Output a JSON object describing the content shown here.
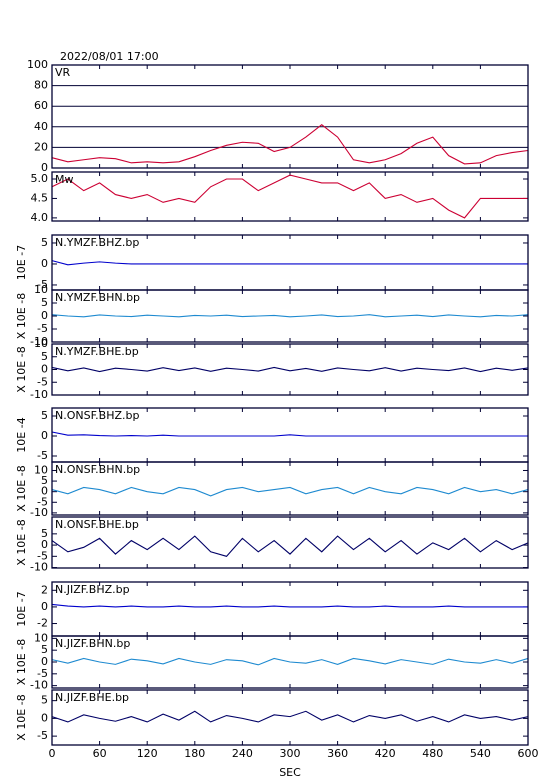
{
  "chart_data": [
    {
      "type": "line",
      "title": "2022/08/01 17:00",
      "grid": true,
      "x": [
        0,
        20,
        40,
        60,
        80,
        100,
        120,
        140,
        160,
        180,
        200,
        220,
        240,
        260,
        280,
        300,
        320,
        340,
        360,
        380,
        400,
        420,
        440,
        460,
        480,
        500,
        520,
        540,
        560,
        580,
        600
      ],
      "xlim": [
        0,
        600
      ],
      "ylim": [
        0,
        100
      ],
      "yticks": [
        0,
        20,
        40,
        60,
        80,
        100
      ],
      "series": [
        {
          "name": "VR",
          "color": "#cc0033",
          "values": [
            10,
            6,
            8,
            10,
            9,
            5,
            6,
            5,
            6,
            11,
            17,
            22,
            25,
            24,
            16,
            20,
            30,
            42,
            30,
            8,
            5,
            8,
            14,
            24,
            30,
            12,
            4,
            5,
            12,
            15,
            17
          ]
        }
      ]
    },
    {
      "type": "line",
      "x": [
        0,
        20,
        40,
        60,
        80,
        100,
        120,
        140,
        160,
        180,
        200,
        220,
        240,
        260,
        280,
        300,
        320,
        340,
        360,
        380,
        400,
        420,
        440,
        460,
        480,
        500,
        520,
        540,
        560,
        580,
        600
      ],
      "xlim": [
        0,
        600
      ],
      "ylim": [
        3.92,
        5.18
      ],
      "yticks": [
        {
          "value": 4,
          "label": "4.0"
        },
        {
          "value": 4.5,
          "label": "4.5"
        },
        {
          "value": 5,
          "label": "5.0"
        }
      ],
      "series": [
        {
          "name": "Mw",
          "color": "#cc0033",
          "values": [
            4.8,
            5.0,
            4.7,
            4.9,
            4.6,
            4.5,
            4.6,
            4.4,
            4.5,
            4.4,
            4.8,
            5.0,
            5.0,
            4.7,
            4.9,
            5.1,
            5.0,
            4.9,
            4.9,
            4.7,
            4.9,
            4.5,
            4.6,
            4.4,
            4.5,
            4.2,
            4.0,
            4.5,
            4.5,
            4.5,
            4.5
          ]
        }
      ]
    },
    {
      "type": "line",
      "ylabel": "10E -7",
      "x": [
        0,
        20,
        40,
        60,
        80,
        100,
        120,
        140,
        160,
        180,
        200,
        220,
        240,
        260,
        280,
        300,
        320,
        340,
        360,
        380,
        400,
        420,
        440,
        460,
        480,
        500,
        520,
        540,
        560,
        580,
        600
      ],
      "xlim": [
        0,
        600
      ],
      "ylim": [
        -6.2,
        6.9
      ],
      "yticks": [
        -5,
        0,
        5
      ],
      "series": [
        {
          "name": "N.YMZF.BHZ.bp",
          "color": "#0000cc",
          "values": [
            0.8,
            -0.2,
            0.2,
            0.5,
            0.2,
            0,
            0,
            0,
            0,
            0,
            0,
            0,
            0,
            0,
            0,
            0,
            0,
            0,
            0,
            0,
            0,
            0,
            0,
            0,
            0,
            0,
            0,
            0,
            0,
            0,
            0
          ]
        }
      ]
    },
    {
      "type": "line",
      "ylabel": "X 10E -8",
      "x": [
        0,
        20,
        40,
        60,
        80,
        100,
        120,
        140,
        160,
        180,
        200,
        220,
        240,
        260,
        280,
        300,
        320,
        340,
        360,
        380,
        400,
        420,
        440,
        460,
        480,
        500,
        520,
        540,
        560,
        580,
        600
      ],
      "xlim": [
        0,
        600
      ],
      "ylim": [
        -10,
        10
      ],
      "yticks": [
        -10,
        -5,
        0,
        5,
        10
      ],
      "series": [
        {
          "name": "N.YMZF.BHN.bp",
          "color": "#1e8ad0",
          "values": [
            0.5,
            0,
            -0.3,
            0.4,
            0,
            -0.2,
            0.3,
            0,
            -0.3,
            0.2,
            0,
            0.3,
            -0.2,
            0,
            0.2,
            -0.3,
            0,
            0.4,
            -0.2,
            0,
            0.5,
            -0.3,
            0,
            0.3,
            -0.2,
            0.4,
            0,
            -0.3,
            0.2,
            0,
            0.5
          ]
        }
      ]
    },
    {
      "type": "line",
      "ylabel": "X 10E -8",
      "x": [
        0,
        20,
        40,
        60,
        80,
        100,
        120,
        140,
        160,
        180,
        200,
        220,
        240,
        260,
        280,
        300,
        320,
        340,
        360,
        380,
        400,
        420,
        440,
        460,
        480,
        500,
        520,
        540,
        560,
        580,
        600
      ],
      "xlim": [
        0,
        600
      ],
      "ylim": [
        -10,
        10
      ],
      "yticks": [
        -10,
        -5,
        0,
        5,
        10
      ],
      "series": [
        {
          "name": "N.YMZF.BHE.bp",
          "color": "#000066",
          "values": [
            0.8,
            -0.5,
            0.6,
            -0.8,
            0.5,
            0,
            -0.6,
            0.7,
            -0.4,
            0.6,
            -0.7,
            0.5,
            0,
            -0.6,
            0.8,
            -0.5,
            0.4,
            -0.7,
            0.6,
            0,
            -0.5,
            0.7,
            -0.6,
            0.5,
            0,
            -0.4,
            0.6,
            -0.8,
            0.5,
            -0.3,
            0.6
          ]
        }
      ]
    },
    {
      "type": "line",
      "ylabel": "10E -4",
      "x": [
        0,
        20,
        40,
        60,
        80,
        100,
        120,
        140,
        160,
        180,
        200,
        220,
        240,
        260,
        280,
        300,
        320,
        340,
        360,
        380,
        400,
        420,
        440,
        460,
        480,
        500,
        520,
        540,
        560,
        580,
        600
      ],
      "xlim": [
        0,
        600
      ],
      "ylim": [
        -6.5,
        7
      ],
      "yticks": [
        -5,
        0,
        5
      ],
      "series": [
        {
          "name": "N.ONSF.BHZ.bp",
          "color": "#0000cc",
          "values": [
            1,
            0.2,
            0.3,
            0.1,
            0,
            0.1,
            0,
            0.2,
            0,
            0,
            0,
            0,
            0,
            0,
            0,
            0.3,
            0,
            0,
            0,
            0,
            0,
            0,
            0,
            0,
            0,
            0,
            0,
            0,
            0,
            0,
            0
          ]
        }
      ]
    },
    {
      "type": "line",
      "ylabel": "X 10E -8",
      "x": [
        0,
        20,
        40,
        60,
        80,
        100,
        120,
        140,
        160,
        180,
        200,
        220,
        240,
        260,
        280,
        300,
        320,
        340,
        360,
        380,
        400,
        420,
        440,
        460,
        480,
        500,
        520,
        540,
        560,
        580,
        600
      ],
      "xlim": [
        0,
        600
      ],
      "ylim": [
        -11,
        14
      ],
      "yticks": [
        -10,
        -5,
        0,
        5,
        10
      ],
      "series": [
        {
          "name": "N.ONSF.BHN.bp",
          "color": "#1e8ad0",
          "values": [
            1,
            -1,
            2,
            1,
            -1,
            2,
            0,
            -1,
            2,
            1,
            -2,
            1,
            2,
            0,
            1,
            2,
            -1,
            1,
            2,
            -1,
            2,
            0,
            -1,
            2,
            1,
            -1,
            2,
            0,
            1,
            -1,
            1
          ]
        }
      ]
    },
    {
      "type": "line",
      "ylabel": "X 10E -8",
      "x": [
        0,
        20,
        40,
        60,
        80,
        100,
        120,
        140,
        160,
        180,
        200,
        220,
        240,
        260,
        280,
        300,
        320,
        340,
        360,
        380,
        400,
        420,
        440,
        460,
        480,
        500,
        520,
        540,
        560,
        580,
        600
      ],
      "xlim": [
        0,
        600
      ],
      "ylim": [
        -10.2,
        12.5
      ],
      "yticks": [
        -10,
        -5,
        0,
        5
      ],
      "series": [
        {
          "name": "N.ONSF.BHE.bp",
          "color": "#000066",
          "values": [
            2,
            -3,
            -1,
            3,
            -4,
            2,
            -2,
            3,
            -2,
            4,
            -3,
            -5,
            3,
            -3,
            2,
            -4,
            3,
            -3,
            4,
            -2,
            3,
            -3,
            2,
            -4,
            1,
            -2,
            3,
            -3,
            2,
            -2,
            1
          ]
        }
      ]
    },
    {
      "type": "line",
      "ylabel": "10E -7",
      "x": [
        0,
        20,
        40,
        60,
        80,
        100,
        120,
        140,
        160,
        180,
        200,
        220,
        240,
        260,
        280,
        300,
        320,
        340,
        360,
        380,
        400,
        420,
        440,
        460,
        480,
        500,
        520,
        540,
        560,
        580,
        600
      ],
      "xlim": [
        0,
        600
      ],
      "ylim": [
        -3.5,
        3
      ],
      "yticks": [
        -2,
        0,
        2
      ],
      "series": [
        {
          "name": "N.JIZF.BHZ.bp",
          "color": "#0000cc",
          "values": [
            0.3,
            0.1,
            0,
            0.1,
            0,
            0.1,
            0,
            0,
            0.1,
            0,
            0,
            0.1,
            0,
            0,
            0.1,
            0,
            0,
            0,
            0.1,
            0,
            0,
            0.1,
            0,
            0,
            0,
            0.1,
            0,
            0,
            0,
            0,
            0
          ]
        }
      ]
    },
    {
      "type": "line",
      "ylabel": "X 10E -8",
      "x": [
        0,
        20,
        40,
        60,
        80,
        100,
        120,
        140,
        160,
        180,
        200,
        220,
        240,
        260,
        280,
        300,
        320,
        340,
        360,
        380,
        400,
        420,
        440,
        460,
        480,
        500,
        520,
        540,
        560,
        580,
        600
      ],
      "xlim": [
        0,
        600
      ],
      "ylim": [
        -11,
        11
      ],
      "yticks": [
        -10,
        -5,
        0,
        5,
        10
      ],
      "series": [
        {
          "name": "N.JIZF.BHN.bp",
          "color": "#1e8ad0",
          "values": [
            1,
            -0.5,
            1.5,
            0,
            -1,
            1.2,
            0.5,
            -0.8,
            1.5,
            0,
            -1,
            1,
            0.5,
            -1.2,
            1.5,
            0,
            -0.5,
            1,
            -1,
            1.5,
            0.5,
            -0.8,
            1,
            0,
            -1,
            1.2,
            0,
            -0.5,
            1,
            -0.5,
            1.5
          ]
        }
      ]
    },
    {
      "type": "line",
      "ylabel": "X 10E -8",
      "xlabel": "SEC",
      "x": [
        0,
        20,
        40,
        60,
        80,
        100,
        120,
        140,
        160,
        180,
        200,
        220,
        240,
        260,
        280,
        300,
        320,
        340,
        360,
        380,
        400,
        420,
        440,
        460,
        480,
        500,
        520,
        540,
        560,
        580,
        600
      ],
      "xlim": [
        0,
        600
      ],
      "xticks": [
        0,
        60,
        120,
        180,
        240,
        300,
        360,
        420,
        480,
        540,
        600
      ],
      "ylim": [
        -7.5,
        8
      ],
      "yticks": [
        -5,
        0,
        5
      ],
      "series": [
        {
          "name": "N.JIZF.BHE.bp",
          "color": "#000066",
          "values": [
            0.5,
            -1,
            1,
            0,
            -0.8,
            0.5,
            -1,
            1.2,
            -0.5,
            2,
            -1,
            0.8,
            0,
            -1,
            1,
            0.5,
            2,
            -0.5,
            1,
            -1,
            0.8,
            0,
            1,
            -0.8,
            0.5,
            -1,
            1,
            0,
            0.5,
            -0.5,
            0.5
          ]
        }
      ]
    }
  ]
}
